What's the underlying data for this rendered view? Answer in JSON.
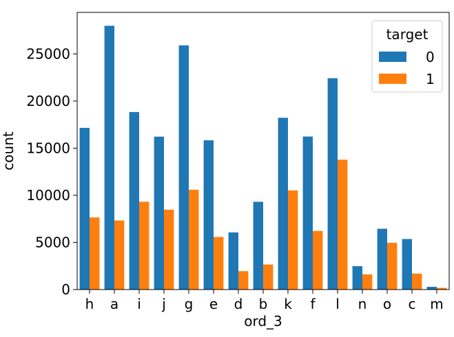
{
  "chart_data": {
    "type": "bar",
    "title": "",
    "xlabel": "ord_3",
    "ylabel": "count",
    "categories": [
      "h",
      "a",
      "i",
      "j",
      "g",
      "e",
      "d",
      "b",
      "k",
      "f",
      "l",
      "n",
      "o",
      "c",
      "m"
    ],
    "series": [
      {
        "name": "0",
        "color": "#1f77b4",
        "values": [
          17150,
          27980,
          18830,
          16220,
          25900,
          15830,
          6060,
          9310,
          18220,
          16230,
          22420,
          2480,
          6450,
          5360,
          290
        ]
      },
      {
        "name": "1",
        "color": "#ff7f0e",
        "values": [
          7650,
          7320,
          9310,
          8470,
          10590,
          5580,
          1950,
          2650,
          10520,
          6220,
          13770,
          1610,
          4960,
          1690,
          180
        ]
      }
    ],
    "ylim": [
      0,
      29400
    ],
    "yticks": [
      0,
      5000,
      10000,
      15000,
      20000,
      25000
    ],
    "grid": false,
    "legend": {
      "title": "target",
      "placement": "top-right"
    }
  }
}
